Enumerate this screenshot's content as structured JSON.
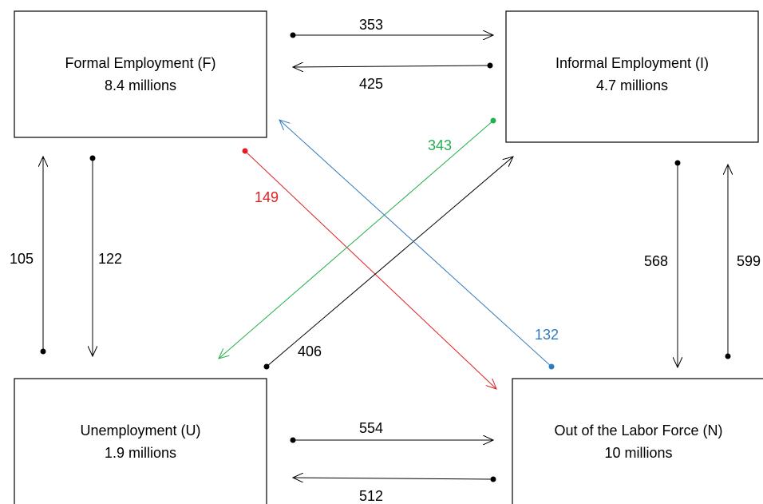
{
  "nodes": [
    {
      "label": "Formal Employment (F)",
      "size": "8.4 millions"
    },
    {
      "label": "Informal Employment (I)",
      "size": "4.7 millions"
    },
    {
      "label": "Unemployment (U)",
      "size": "1.9 millions"
    },
    {
      "label": "Out of the Labor Force (N)",
      "size": "10 millions"
    }
  ],
  "flows": [
    {
      "value": 353
    },
    {
      "value": 425
    },
    {
      "value": 105
    },
    {
      "value": 122
    },
    {
      "value": 568
    },
    {
      "value": 599
    },
    {
      "value": 554
    },
    {
      "value": 512
    },
    {
      "value": 149
    },
    {
      "value": 343
    },
    {
      "value": 406
    },
    {
      "value": 132
    }
  ]
}
